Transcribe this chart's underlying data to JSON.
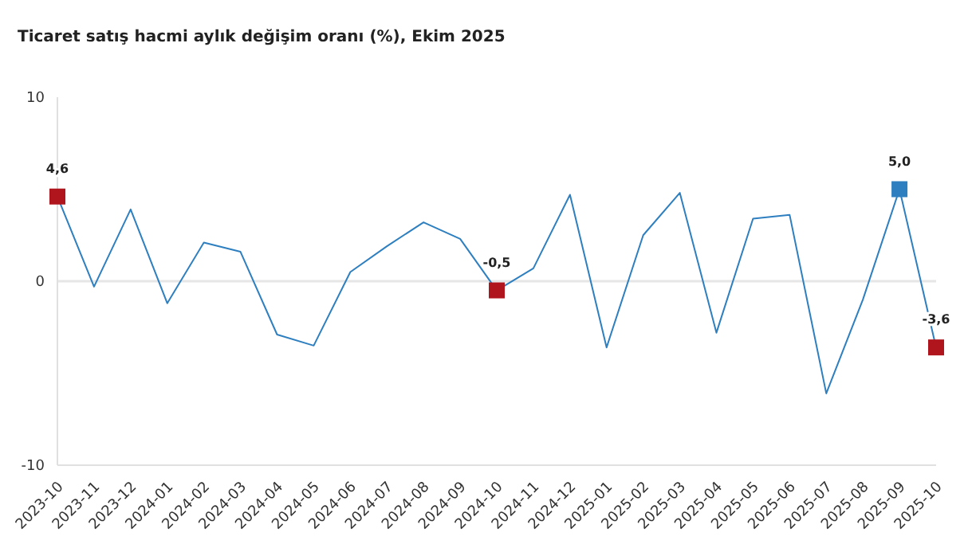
{
  "chart_data": {
    "type": "line",
    "title": "Ticaret satış hacmi aylık değişim oranı (%), Ekim 2025",
    "categories": [
      "2023-10",
      "2023-11",
      "2023-12",
      "2024-01",
      "2024-02",
      "2024-03",
      "2024-04",
      "2024-05",
      "2024-06",
      "2024-07",
      "2024-08",
      "2024-09",
      "2024-10",
      "2024-11",
      "2024-12",
      "2025-01",
      "2025-02",
      "2025-03",
      "2025-04",
      "2025-05",
      "2025-06",
      "2025-07",
      "2025-08",
      "2025-09",
      "2025-10"
    ],
    "series": [
      {
        "color": "#2e7fc0",
        "values": [
          4.6,
          -0.3,
          3.9,
          -1.2,
          2.1,
          1.6,
          -2.9,
          -3.5,
          0.5,
          1.9,
          3.2,
          2.3,
          -0.5,
          0.7,
          4.7,
          -3.6,
          2.5,
          4.8,
          -2.8,
          3.4,
          3.6,
          -6.1,
          -1.0,
          5.0,
          -3.6
        ],
        "colors": [
          "#b0141c",
          null,
          null,
          null,
          null,
          null,
          null,
          null,
          null,
          null,
          null,
          null,
          "#b0141c",
          null,
          null,
          null,
          null,
          null,
          null,
          null,
          null,
          null,
          null,
          "#2e7fc0",
          "#b0141c"
        ],
        "value_labels": [
          "4,6",
          null,
          null,
          null,
          null,
          null,
          null,
          null,
          null,
          null,
          null,
          null,
          "-0,5",
          null,
          null,
          null,
          null,
          null,
          null,
          null,
          null,
          null,
          null,
          "5,0",
          "-3,6"
        ]
      }
    ],
    "ylim": [
      -10,
      10
    ],
    "yticks": [
      -10,
      0,
      10
    ],
    "line_style": "solid",
    "grid": false,
    "legend": false,
    "ref_lines": [
      {
        "axis": "y",
        "value": 0,
        "color": "#e6e6e6"
      }
    ]
  }
}
